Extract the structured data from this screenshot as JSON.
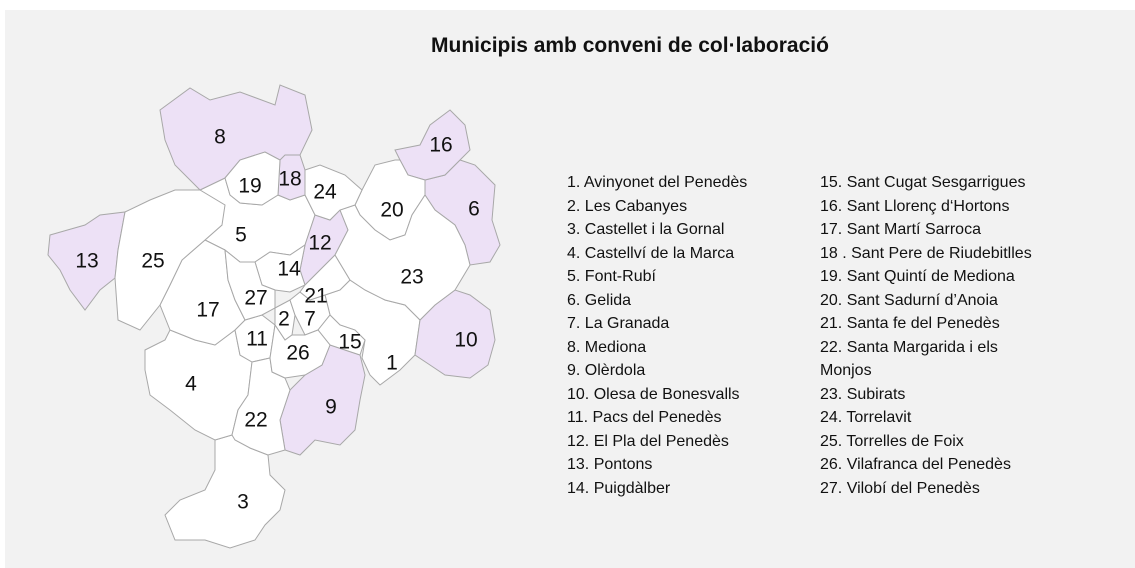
{
  "title": "Municipis amb conveni de col·laboració",
  "regions": [
    {
      "label": "1",
      "color": "#ffffff"
    },
    {
      "label": "2",
      "color": "#ffffff"
    },
    {
      "label": "3",
      "color": "#ffffff"
    },
    {
      "label": "4",
      "color": "#ffffff"
    },
    {
      "label": "5",
      "color": "#ffffff"
    },
    {
      "label": "6",
      "color": "#ede1f6"
    },
    {
      "label": "7",
      "color": "#ffffff"
    },
    {
      "label": "8",
      "color": "#ede1f6"
    },
    {
      "label": "9",
      "color": "#ede1f6"
    },
    {
      "label": "10",
      "color": "#ede1f6"
    },
    {
      "label": "11",
      "color": "#ffffff"
    },
    {
      "label": "12",
      "color": "#ede1f6"
    },
    {
      "label": "13",
      "color": "#ede1f6"
    },
    {
      "label": "14",
      "color": "#ffffff"
    },
    {
      "label": "15",
      "color": "#ffffff"
    },
    {
      "label": "16",
      "color": "#ede1f6"
    },
    {
      "label": "17",
      "color": "#ffffff"
    },
    {
      "label": "18",
      "color": "#ede1f6"
    },
    {
      "label": "19",
      "color": "#ffffff"
    },
    {
      "label": "20",
      "color": "#ffffff"
    },
    {
      "label": "21",
      "color": "#ffffff"
    },
    {
      "label": "22",
      "color": "#ffffff"
    },
    {
      "label": "23",
      "color": "#ffffff"
    },
    {
      "label": "24",
      "color": "#ffffff"
    },
    {
      "label": "25",
      "color": "#ffffff"
    },
    {
      "label": "26",
      "color": "#ffffff"
    },
    {
      "label": "27",
      "color": "#ffffff"
    }
  ],
  "legend": [
    "1. Avinyonet del Penedès",
    "2. Les Cabanyes",
    "3. Castellet i la Gornal",
    "4. Castellví de la Marca",
    "5. Font-Rubí",
    "6. Gelida",
    "7. La Granada",
    "8. Mediona",
    "9. Olèrdola",
    "10. Olesa de Bonesvalls",
    "11. Pacs del Penedès",
    "12. El Pla del Penedès",
    "13. Pontons",
    "14. Puigdàlber",
    "15. Sant Cugat Sesgarrigues",
    "16. Sant Llorenç d‘Hortons",
    "17. Sant Martí Sarroca",
    "18 . Sant Pere de Riudebitlles",
    "19. Sant Quintí de Mediona",
    "20. Sant Sadurní d’Anoia",
    "21. Santa fe del Penedès",
    "22. Santa Margarida i els Monjos",
    "23. Subirats",
    "24. Torrelavit",
    "25. Torrelles de Foix",
    "26. Vilafranca del Penedès",
    "27. Vilobí del Penedès"
  ]
}
